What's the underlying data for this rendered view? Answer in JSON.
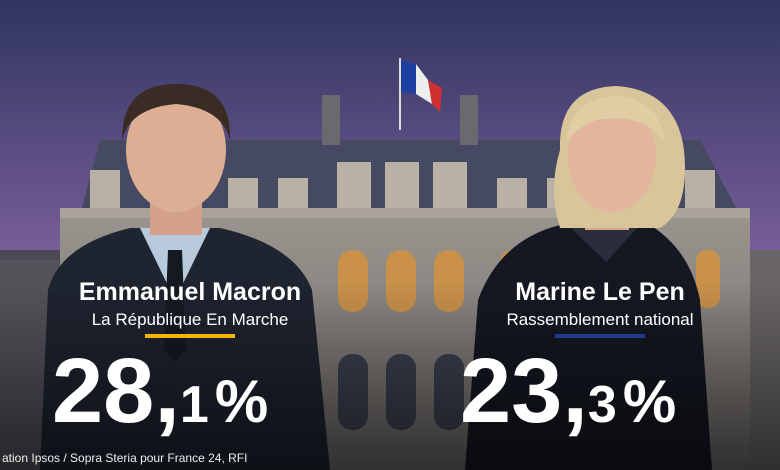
{
  "candidates": [
    {
      "name": "Emmanuel Macron",
      "party": "La République En Marche",
      "result": {
        "integer": "28,",
        "decimal": "1",
        "unit": "%"
      }
    },
    {
      "name": "Marine Le Pen",
      "party": "Rassemblement national",
      "result": {
        "integer": "23,",
        "decimal": "3",
        "unit": "%"
      }
    }
  ],
  "source": "ation Ipsos / Sopra Steria pour France 24, RFI"
}
